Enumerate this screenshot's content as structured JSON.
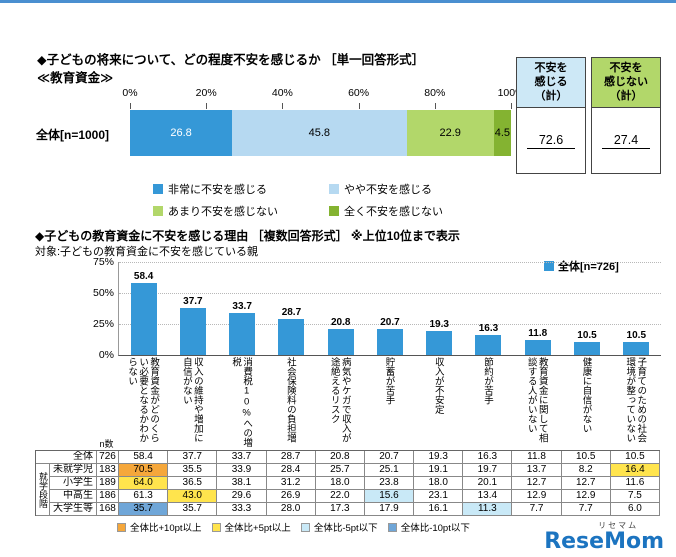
{
  "brand": {
    "logo": "ReseMom",
    "kana": "リセマム"
  },
  "chart_data": [
    {
      "type": "bar",
      "subtype": "horizontal_stacked_100pct",
      "title": "◆子どもの将来について、どの程度不安を感じるか ［単一回答形式］",
      "subtitle": "≪教育資金≫",
      "category": "全体[n=1000]",
      "xticks": [
        "0%",
        "20%",
        "40%",
        "60%",
        "80%",
        "100%"
      ],
      "xlim": [
        0,
        100
      ],
      "series": [
        {
          "name": "非常に不安を感じる",
          "value": 26.8,
          "color": "#3598d7",
          "text_color": "#ffffff"
        },
        {
          "name": "やや不安を感じる",
          "value": 45.8,
          "color": "#b6d9f1",
          "text_color": "#000000"
        },
        {
          "name": "あまり不安を感じない",
          "value": 22.9,
          "color": "#b2d76a",
          "text_color": "#000000"
        },
        {
          "name": "全く不安を感じない",
          "value": 4.5,
          "color": "#84b331",
          "text_color": "#000000"
        }
      ],
      "summary_boxes": [
        {
          "title_lines": [
            "不安を",
            "感じる",
            "（計）"
          ],
          "value": "72.6",
          "header_color": "#cde8f6"
        },
        {
          "title_lines": [
            "不安を",
            "感じない",
            "（計）"
          ],
          "value": "27.4",
          "header_color": "#b2d76a"
        }
      ]
    },
    {
      "type": "bar",
      "title": "◆子どもの教育資金に不安を感じる理由 ［複数回答形式］ ※上位10位まで表示",
      "note": "対象:子どもの教育資金に不安を感じている親",
      "legend": "全体[n=726]",
      "bar_color": "#3598d7",
      "ylim": [
        0,
        75
      ],
      "yticks": [
        "75%",
        "50%",
        "25%",
        "0%"
      ],
      "categories": [
        "教育資金がどのくらい必要となるかわからない",
        "収入の維持や増加に自信がない",
        "消費税10%への増税",
        "社会保険料の負担増",
        "病気やケガで収入が途絶えるリスク",
        "貯蓄が苦手",
        "収入が不安定",
        "節約が苦手",
        "教育資金に関して相談する人がいない",
        "健康に自信がない",
        "子育てのための社会環境が整っていない"
      ],
      "values": [
        58.4,
        37.7,
        33.7,
        28.7,
        20.8,
        20.7,
        19.3,
        16.3,
        11.8,
        10.5,
        10.5
      ]
    },
    {
      "type": "table",
      "n_header": "n数",
      "group_label": "就学段階",
      "rows": [
        {
          "label": "全体",
          "n": 726,
          "values": [
            58.4,
            37.7,
            33.7,
            28.7,
            20.8,
            20.7,
            19.3,
            16.3,
            11.8,
            10.5,
            10.5
          ]
        },
        {
          "label": "未就学児",
          "n": 183,
          "values": [
            70.5,
            35.5,
            33.9,
            28.4,
            25.7,
            25.1,
            19.1,
            19.7,
            13.7,
            8.2,
            16.4
          ]
        },
        {
          "label": "小学生",
          "n": 189,
          "values": [
            64.0,
            36.5,
            38.1,
            31.2,
            18.0,
            23.8,
            18.0,
            20.1,
            12.7,
            12.7,
            11.6
          ]
        },
        {
          "label": "中高生",
          "n": 186,
          "values": [
            61.3,
            43.0,
            29.6,
            26.9,
            22.0,
            15.6,
            23.1,
            13.4,
            12.9,
            12.9,
            7.5
          ]
        },
        {
          "label": "大学生等",
          "n": 168,
          "values": [
            35.7,
            35.7,
            33.3,
            28.0,
            17.3,
            17.9,
            16.1,
            11.3,
            7.7,
            7.7,
            6.0
          ]
        }
      ],
      "highlight_legend": [
        {
          "label": "全体比+10pt以上",
          "color": "#f5a73b"
        },
        {
          "label": "全体比+5pt以上",
          "color": "#ffe44d"
        },
        {
          "label": "全体比-5pt以下",
          "color": "#c9e9f7"
        },
        {
          "label": "全体比-10pt以下",
          "color": "#6fa6d8"
        }
      ]
    }
  ]
}
